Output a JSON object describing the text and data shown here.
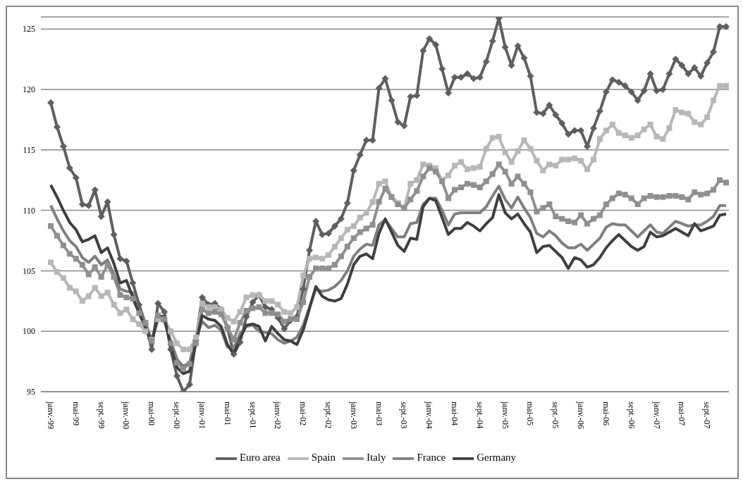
{
  "chart_data": {
    "type": "line",
    "categories": [
      "janv.-99",
      null,
      null,
      null,
      "mai-99",
      null,
      null,
      null,
      "sept.-99",
      null,
      null,
      null,
      "janv.-00",
      null,
      null,
      null,
      "mai-00",
      null,
      null,
      null,
      "sept.-00",
      null,
      null,
      null,
      "janv.-01",
      null,
      null,
      null,
      "mai-01",
      null,
      null,
      null,
      "sept.-01",
      null,
      null,
      null,
      "janv.-02",
      null,
      null,
      null,
      "mai-02",
      null,
      null,
      null,
      "sept.-02",
      null,
      null,
      null,
      "janv.-03",
      null,
      null,
      null,
      "mai-03",
      null,
      null,
      null,
      "sept.-03",
      null,
      null,
      null,
      "janv.-04",
      null,
      null,
      null,
      "mai-04",
      null,
      null,
      null,
      "sept.-04",
      null,
      null,
      null,
      "janv.-05",
      null,
      null,
      null,
      "mai-05",
      null,
      null,
      null,
      "sept.-05",
      null,
      null,
      null,
      "janv.-06",
      null,
      null,
      null,
      "mai-06",
      null,
      null,
      null,
      "sept.-06",
      null,
      null,
      null,
      "janv.-07",
      null,
      null,
      null,
      "mai-07",
      null,
      null,
      null,
      "sept.-07",
      null,
      null,
      null
    ],
    "series": [
      {
        "name": "Euro area",
        "color": "#5f5f5f",
        "marker": "diamond",
        "values": [
          118.9,
          116.9,
          115.3,
          113.5,
          112.7,
          110.5,
          110.4,
          111.7,
          109.5,
          110.7,
          108,
          106,
          105.8,
          104,
          102.2,
          100.6,
          98.5,
          102.3,
          101.6,
          98.5,
          96.3,
          95,
          95.6,
          99.3,
          102.8,
          102.2,
          102.3,
          101.8,
          100.3,
          98.1,
          99.1,
          101.2,
          102.4,
          103,
          102,
          101.8,
          101.1,
          100.2,
          100.9,
          101.2,
          103.5,
          106.7,
          109.1,
          108,
          108.1,
          108.7,
          109.3,
          110.6,
          113.3,
          114.6,
          115.8,
          115.8,
          120.1,
          120.9,
          119.1,
          117.3,
          117,
          119.4,
          119.5,
          123.2,
          124.2,
          123.7,
          121.7,
          119.7,
          121,
          121,
          121.3,
          120.9,
          121,
          122.3,
          124,
          125.9,
          123.5,
          122,
          123.6,
          122.6,
          121.1,
          118.1,
          118,
          118.7,
          117.9,
          117.2,
          116.3,
          116.6,
          116.6,
          115.3,
          116.8,
          118.2,
          119.8,
          120.8,
          120.6,
          120.3,
          119.8,
          119.1,
          119.9,
          121.3,
          119.9,
          120,
          121.3,
          122.5,
          122,
          121.3,
          121.8,
          121.1,
          122.2,
          123.1,
          125.2,
          125.2
        ]
      },
      {
        "name": "Spain",
        "color": "#b7b7b7",
        "marker": "square",
        "values": [
          105.7,
          104.9,
          104.4,
          103.6,
          103.3,
          102.5,
          102.9,
          103.6,
          102.9,
          103.2,
          102.2,
          101.5,
          101.8,
          101,
          100.6,
          100,
          99.3,
          101,
          101,
          100,
          99,
          98.5,
          98.5,
          99.5,
          102.3,
          102,
          102,
          101.8,
          101.1,
          100.8,
          101.6,
          102.8,
          103,
          103,
          102.5,
          102.5,
          102.2,
          101.6,
          101.5,
          102,
          104.6,
          106,
          106.1,
          106,
          106.3,
          107,
          107.7,
          108.4,
          108.7,
          109.4,
          109.8,
          110.7,
          112.2,
          112.4,
          111.1,
          110.6,
          110.2,
          112.2,
          112.5,
          113.8,
          113.7,
          113.5,
          112.5,
          112.9,
          113.7,
          114,
          113.4,
          113.5,
          113.6,
          115.1,
          116,
          116.1,
          114.8,
          114,
          114.9,
          115.8,
          115.1,
          114.1,
          113.3,
          113.8,
          113.7,
          114.2,
          114.2,
          114.3,
          114.1,
          113.4,
          114.2,
          115.9,
          116.6,
          117.1,
          116.4,
          116.2,
          116,
          116.2,
          116.7,
          117.1,
          116.1,
          115.9,
          116.8,
          118.3,
          118.1,
          118,
          117.3,
          117.1,
          117.7,
          119.1,
          120.3,
          120.3
        ]
      },
      {
        "name": "Italy",
        "color": "#8f8f8f",
        "marker": "square",
        "values": [
          108.7,
          107.9,
          107.1,
          106.4,
          106,
          105.5,
          104.7,
          105.3,
          104.5,
          105.5,
          104.5,
          103,
          102.8,
          102.7,
          101.5,
          100.7,
          99.2,
          101.3,
          101,
          99,
          97.4,
          96.9,
          97.3,
          99,
          101.8,
          101.5,
          101.6,
          101.4,
          100.3,
          99.3,
          100.7,
          101.7,
          101.9,
          102,
          101.5,
          101.5,
          101.4,
          100.8,
          101,
          101,
          102.4,
          104.5,
          105.2,
          105.2,
          105.2,
          105.5,
          106.2,
          107,
          107.7,
          108.2,
          108.5,
          108.8,
          110.7,
          111.8,
          111.1,
          110.5,
          110.2,
          110.9,
          111.6,
          112.8,
          113.5,
          113.2,
          112.4,
          111,
          111.7,
          111.9,
          112.2,
          112.1,
          111.9,
          112.4,
          113,
          113.8,
          113.2,
          112.2,
          112.8,
          112.2,
          111.5,
          109.9,
          110.2,
          110.5,
          109.5,
          109.3,
          109.1,
          109,
          109.6,
          108.9,
          109.3,
          109.6,
          110.5,
          111,
          111.4,
          111.3,
          111,
          110.5,
          111,
          111.2,
          111.1,
          111.1,
          111.2,
          111.2,
          111.1,
          110.9,
          111.5,
          111.3,
          111.4,
          111.7,
          112.5,
          112.3
        ]
      },
      {
        "name": "France",
        "color": "#7f7f7f",
        "marker": "none",
        "values": [
          110.4,
          109.3,
          108.3,
          107.5,
          107,
          106.1,
          105.7,
          106.2,
          105.5,
          105.9,
          104.7,
          103.5,
          103.3,
          103.2,
          101.8,
          100.7,
          99.2,
          101,
          100.8,
          99.2,
          97.7,
          97.1,
          97.4,
          99.5,
          100.8,
          100.3,
          100.5,
          100.1,
          98.7,
          98.6,
          99.8,
          100.4,
          100.5,
          100,
          99.9,
          99.8,
          99.3,
          99,
          99.2,
          99.5,
          100.5,
          102,
          103.5,
          103.3,
          103.4,
          103.7,
          104.2,
          105,
          106.2,
          106.8,
          107.2,
          107.1,
          108.8,
          109.2,
          108.5,
          107.8,
          107.8,
          108.9,
          109,
          110.5,
          111,
          111,
          110,
          108.8,
          109.7,
          109.8,
          109.8,
          109.8,
          109.8,
          110.3,
          111.2,
          112,
          110.9,
          110.2,
          111.1,
          110.2,
          109.4,
          108.1,
          107.8,
          108.3,
          107.9,
          107.3,
          106.9,
          106.9,
          107.2,
          106.7,
          107.2,
          107.7,
          108.6,
          108.9,
          108.8,
          108.8,
          108.3,
          107.8,
          108.3,
          108.8,
          108.2,
          108.1,
          108.6,
          109.1,
          108.9,
          108.7,
          108.8,
          108.8,
          109.1,
          109.5,
          110.4,
          110.4
        ]
      },
      {
        "name": "Germany",
        "color": "#3f3f3f",
        "marker": "none",
        "values": [
          112.1,
          111.1,
          110,
          109,
          108.4,
          107.4,
          107.6,
          107.9,
          106.5,
          106.9,
          105.6,
          104,
          104.2,
          102.8,
          101.5,
          100.3,
          99.1,
          101.3,
          101.2,
          98.7,
          97,
          96.5,
          96.7,
          99,
          101.3,
          101,
          100.9,
          100.4,
          98.9,
          98.1,
          99.4,
          100.5,
          100.6,
          100.4,
          99.2,
          100.4,
          99.8,
          99.3,
          99.2,
          98.9,
          100.1,
          101.9,
          103.7,
          102.9,
          102.6,
          102.5,
          102.7,
          103.9,
          105.5,
          106.2,
          106.4,
          106,
          108.1,
          109.3,
          108.2,
          107.1,
          106.6,
          107.7,
          107.6,
          110.3,
          111,
          110.8,
          109.4,
          108,
          108.5,
          108.5,
          109,
          108.7,
          108.3,
          108.9,
          109.4,
          111.3,
          109.8,
          109.3,
          109.7,
          108.9,
          108.2,
          106.5,
          107,
          107.1,
          106.6,
          106.1,
          105.2,
          106.1,
          105.9,
          105.3,
          105.5,
          106.1,
          106.9,
          107.5,
          108,
          107.5,
          107,
          106.7,
          107,
          108.2,
          107.8,
          107.9,
          108.2,
          108.5,
          108.2,
          107.9,
          108.9,
          108.3,
          108.5,
          108.7,
          109.6,
          109.7
        ]
      }
    ],
    "ylim": [
      95,
      126
    ],
    "yticks": [
      95,
      100,
      105,
      110,
      115,
      120,
      125
    ],
    "grid": "y",
    "legend": "bottom",
    "line_style": "solid"
  }
}
